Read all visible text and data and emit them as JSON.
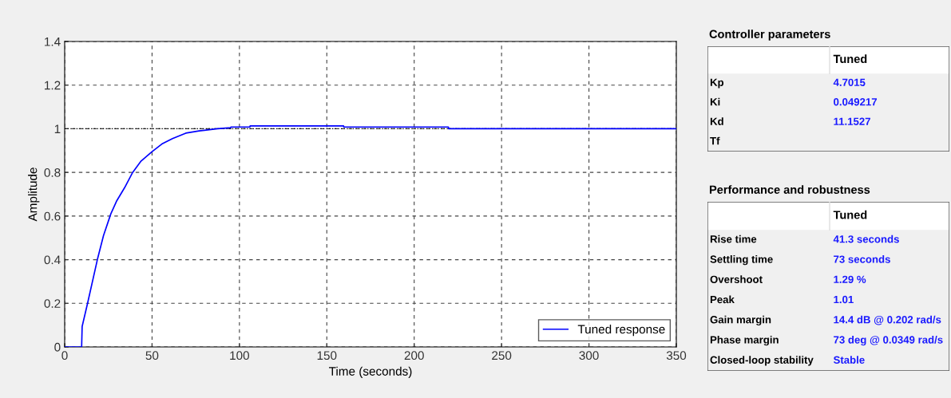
{
  "chart_data": [
    {
      "type": "line",
      "xlabel": "Time (seconds)",
      "ylabel": "Amplitude",
      "xlim": [
        0,
        350
      ],
      "ylim": [
        0,
        1.4
      ],
      "xticks": [
        0,
        50,
        100,
        150,
        200,
        250,
        300,
        350
      ],
      "yticks": [
        0,
        0.2,
        0.4,
        0.6,
        0.8,
        1,
        1.2,
        1.4
      ],
      "grid": true,
      "line_style": "solid",
      "marker": "none",
      "legend": "bottom right",
      "ref_lines": [
        {
          "axis": "y",
          "value": 1,
          "color": "#000000",
          "line_style": "dotted"
        }
      ],
      "series": [
        {
          "name": "Tuned response",
          "color": "#0000ff",
          "x": [
            0,
            9.7,
            10,
            13.1,
            18.7,
            22.2,
            26.4,
            29.8,
            34.3,
            38.9,
            43.5,
            50,
            55.6,
            61.7,
            69.3,
            76.9,
            87.5,
            95,
            95.1,
            106,
            106.1,
            159.6,
            159.7,
            219.6,
            219.7,
            350
          ],
          "values": [
            0,
            0,
            0.094,
            0.2,
            0.4,
            0.51,
            0.61,
            0.67,
            0.73,
            0.8,
            0.85,
            0.895,
            0.93,
            0.955,
            0.98,
            0.99,
            1.0,
            1.005,
            1.008,
            1.008,
            1.013,
            1.013,
            1.008,
            1.008,
            1.0,
            1.0
          ]
        }
      ]
    },
    {
      "type": "other",
      "title": "Controller parameters",
      "categories": [
        "Tuned"
      ],
      "y_categories": [
        "Kp",
        "Ki",
        "Kd",
        "Tf"
      ],
      "cell_labels": [
        [
          "4.7015"
        ],
        [
          "0.049217"
        ],
        [
          "11.1527"
        ],
        [
          null
        ]
      ]
    },
    {
      "type": "other",
      "title": "Performance and robustness",
      "categories": [
        "Tuned"
      ],
      "y_categories": [
        "Rise time",
        "Settling time",
        "Overshoot",
        "Peak",
        "Gain margin",
        "Phase margin",
        "Closed-loop stability"
      ],
      "cell_labels": [
        [
          "41.3 seconds"
        ],
        [
          "73 seconds"
        ],
        [
          "1.29 %"
        ],
        [
          "1.01"
        ],
        [
          "14.4 dB @ 0.202 rad/s"
        ],
        [
          "73 deg @ 0.0349 rad/s"
        ],
        [
          "Stable"
        ]
      ]
    }
  ]
}
